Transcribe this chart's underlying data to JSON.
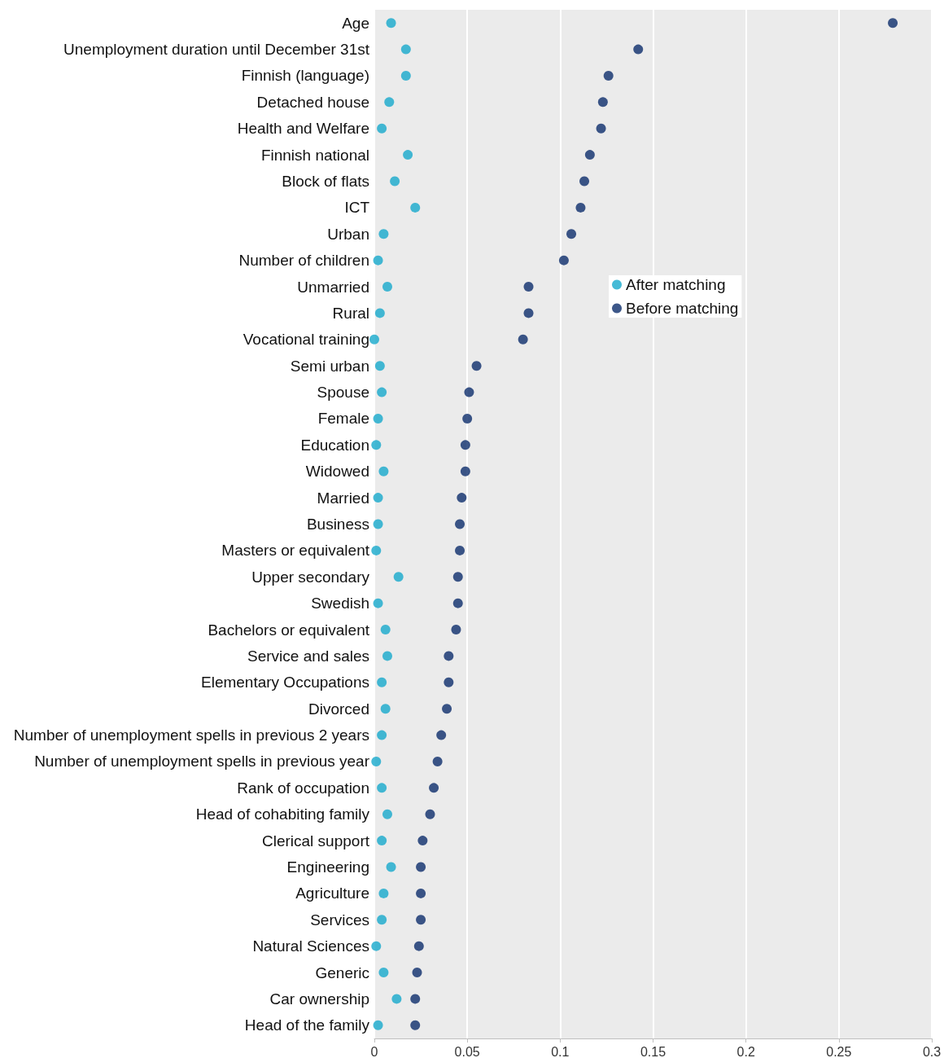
{
  "chart_data": {
    "type": "scatter",
    "orientation": "horizontal",
    "categories": [
      "Age",
      "Unemployment duration until December 31st",
      "Finnish (language)",
      "Detached house",
      "Health and Welfare",
      "Finnish national",
      "Block of flats",
      "ICT",
      "Urban",
      "Number of children",
      "Unmarried",
      "Rural",
      "Vocational training",
      "Semi urban",
      "Spouse",
      "Female",
      "Education",
      "Widowed",
      "Married",
      "Business",
      "Masters or equivalent",
      "Upper secondary",
      "Swedish",
      "Bachelors or equivalent",
      "Service and sales",
      "Elementary Occupations",
      "Divorced",
      "Number of unemployment spells in previous 2 years",
      "Number of unemployment spells in previous year",
      "Rank of occupation",
      "Head of cohabiting family",
      "Clerical support",
      "Engineering",
      "Agriculture",
      "Services",
      "Natural Sciences",
      "Generic",
      "Car ownership",
      "Head of the family"
    ],
    "series": [
      {
        "name": "After matching",
        "color": "#17a9cc",
        "values": [
          0.009,
          0.017,
          0.017,
          0.008,
          0.004,
          0.018,
          0.011,
          0.022,
          0.005,
          0.002,
          0.007,
          0.003,
          0.0,
          0.003,
          0.004,
          0.002,
          0.001,
          0.005,
          0.002,
          0.002,
          0.001,
          0.013,
          0.002,
          0.006,
          0.007,
          0.004,
          0.006,
          0.004,
          0.001,
          0.004,
          0.007,
          0.004,
          0.009,
          0.005,
          0.004,
          0.001,
          0.005,
          0.012,
          0.002
        ]
      },
      {
        "name": "Before matching",
        "color": "#0d2d6b",
        "values": [
          0.279,
          0.142,
          0.126,
          0.123,
          0.122,
          0.116,
          0.113,
          0.111,
          0.106,
          0.102,
          0.083,
          0.083,
          0.08,
          0.055,
          0.051,
          0.05,
          0.049,
          0.049,
          0.047,
          0.046,
          0.046,
          0.045,
          0.045,
          0.044,
          0.04,
          0.04,
          0.039,
          0.036,
          0.034,
          0.032,
          0.03,
          0.026,
          0.025,
          0.025,
          0.025,
          0.024,
          0.023,
          0.022,
          0.022
        ]
      }
    ],
    "xlim": [
      0,
      0.3
    ],
    "xticks": [
      0,
      0.05,
      0.1,
      0.15,
      0.2,
      0.25,
      0.3
    ],
    "grid": "x",
    "legend": "right",
    "marker": "circle"
  }
}
